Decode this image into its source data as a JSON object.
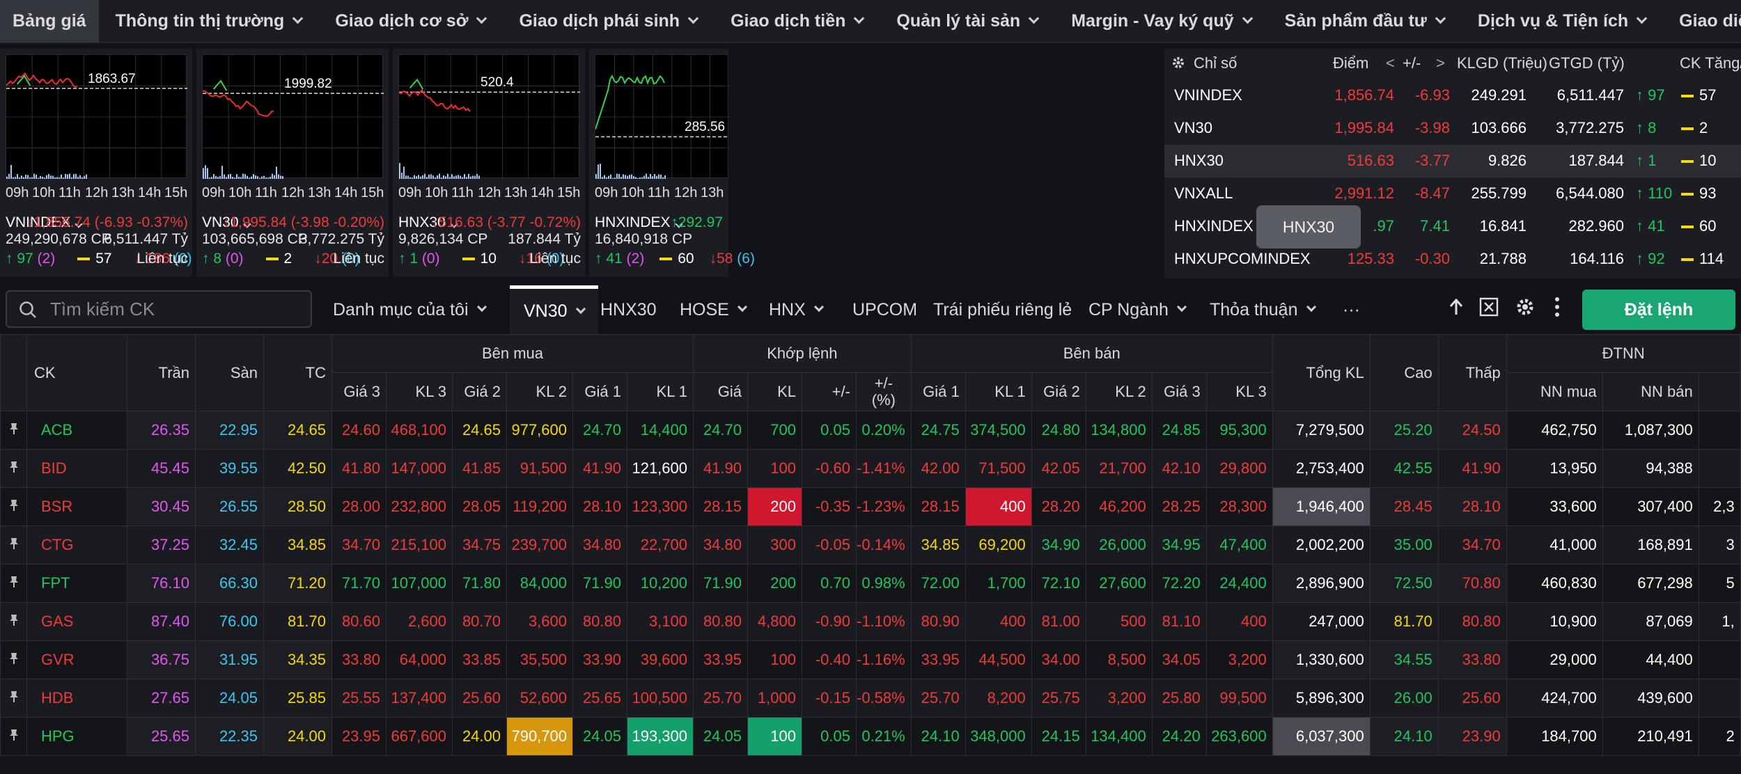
{
  "nav": [
    "Bảng giá",
    "Thông tin thị trường",
    "Giao dịch cơ sở",
    "Giao dịch phái sinh",
    "Giao dịch tiền",
    "Quản lý tài sản",
    "Margin - Vay ký quỹ",
    "Sản phẩm đầu tư",
    "Dịch vụ & Tiện ích",
    "Giao diện của tôi"
  ],
  "cards": [
    {
      "name": "VNINDEX",
      "ref": "1863.67",
      "change": "↓1,856.74 (-6.93 -0.37%)",
      "volume": "249,290,678 CP",
      "value": "6,511.447 Tỷ",
      "up": "↑ 97",
      "ce": "(2)",
      "unch": "57",
      "down": "↓ 186",
      "fl": "(0)",
      "status": "Liên tục",
      "hours": [
        "09h",
        "10h",
        "11h",
        "12h",
        "13h",
        "14h",
        "15h"
      ]
    },
    {
      "name": "VN30",
      "ref": "1999.82",
      "change": "↓1,995.84 (-3.98 -0.20%)",
      "volume": "103,665,698 CP",
      "value": "3,772.275 Tỷ",
      "up": "↑ 8",
      "ce": "(0)",
      "unch": "2",
      "down": "↓20",
      "fl": "(0)",
      "status": "Liên tục",
      "hours": [
        "09h",
        "10h",
        "11h",
        "12h",
        "13h",
        "14h",
        "15h"
      ]
    },
    {
      "name": "HNX30",
      "ref": "520.4",
      "change": "↓516.63 (-3.77 -0.72%)",
      "volume": "9,826,134 CP",
      "value": "187.844 Tỷ",
      "up": "↑ 1",
      "ce": "(0)",
      "unch": "10",
      "down": "↓16",
      "fl": "(0)",
      "status": "Liên tục",
      "hours": [
        "09h",
        "10h",
        "11h",
        "12h",
        "13h",
        "14h",
        "15h"
      ]
    },
    {
      "name": "HNXINDEX",
      "ref": "285.56",
      "change": "↑292.97",
      "volume": "16,840,918 CP",
      "value": "",
      "up": "↑ 41",
      "ce": "(2)",
      "unch": "60",
      "down": "↓58",
      "fl": "(6)",
      "status": "",
      "hours": [
        "09h",
        "10h",
        "11h",
        "12h",
        "13h"
      ]
    }
  ],
  "index_table": {
    "headers": [
      "Chỉ số",
      "Điểm",
      "<",
      "+/-",
      ">",
      "KLGD (Triệu)",
      "GTGD (Tỷ)",
      "CK Tăng/"
    ],
    "rows": [
      {
        "name": "VNINDEX",
        "point": "1,856.74",
        "chg": "-6.93",
        "kl": "249.291",
        "gt": "6,511.447",
        "up": "↑ 97",
        "ref": "57"
      },
      {
        "name": "VN30",
        "point": "1,995.84",
        "chg": "-3.98",
        "kl": "103.666",
        "gt": "3,772.275",
        "up": "↑ 8",
        "ref": "2"
      },
      {
        "name": "HNX30",
        "point": "516.63",
        "chg": "-3.77",
        "kl": "9.826",
        "gt": "187.844",
        "up": "↑ 1",
        "ref": "10"
      },
      {
        "name": "VNXALL",
        "point": "2,991.12",
        "chg": "-8.47",
        "kl": "255.799",
        "gt": "6,544.080",
        "up": "↑ 110",
        "ref": "93"
      },
      {
        "name": "HNXINDEX",
        "point": ".97",
        "chg": "7.41",
        "kl": "16.841",
        "gt": "282.960",
        "up": "↑ 41",
        "ref": "60"
      },
      {
        "name": "HNXUPCOMINDEX",
        "point": "125.33",
        "chg": "-0.30",
        "kl": "21.788",
        "gt": "164.116",
        "up": "↑ 92",
        "ref": "114"
      }
    ],
    "tooltip": "HNX30"
  },
  "toolbar": {
    "search_placeholder": "Tìm kiếm CK",
    "tabs": [
      "Danh mục của tôi",
      "VN30",
      "HNX30",
      "HOSE",
      "HNX",
      "UPCOM",
      "Trái phiếu riêng lẻ",
      "CP Ngành",
      "Thỏa thuận",
      "···"
    ],
    "order": "Đặt lệnh"
  },
  "board": {
    "h1": {
      "ck": "CK",
      "tran": "Trần",
      "san": "Sàn",
      "tc": "TC",
      "buy": "Bên mua",
      "match": "Khớp lệnh",
      "sell": "Bên bán",
      "total": "Tổng KL",
      "high": "Cao",
      "low": "Thấp",
      "foreign": "ĐTNN"
    },
    "h2": [
      "Giá 3",
      "KL 3",
      "Giá 2",
      "KL 2",
      "Giá 1",
      "KL 1",
      "Giá",
      "KL",
      "+/-",
      "+/-\n(%)",
      "Giá 1",
      "KL 1",
      "Giá 2",
      "KL 2",
      "Giá 3",
      "KL 3",
      "NN mua",
      "NN bán"
    ],
    "rows": [
      [
        "ACB",
        "26.35",
        "22.95",
        "24.65",
        "24.60",
        "468,100",
        "24.65",
        "977,600",
        "24.70",
        "14,400",
        "24.70",
        "700",
        "0.05",
        "0.20%",
        "24.75",
        "374,500",
        "24.80",
        "134,800",
        "24.85",
        "95,300",
        "7,279,500",
        "25.20",
        "24.50",
        "462,750",
        "1,087,300",
        ""
      ],
      [
        "BID",
        "45.45",
        "39.55",
        "42.50",
        "41.80",
        "147,000",
        "41.85",
        "91,500",
        "41.90",
        "121,600",
        "41.90",
        "100",
        "-0.60",
        "-1.41%",
        "42.00",
        "71,500",
        "42.05",
        "21,700",
        "42.10",
        "29,800",
        "2,753,400",
        "42.55",
        "41.90",
        "13,950",
        "94,388",
        ""
      ],
      [
        "BSR",
        "30.45",
        "26.55",
        "28.50",
        "28.00",
        "232,800",
        "28.05",
        "119,200",
        "28.10",
        "123,300",
        "28.15",
        "200",
        "-0.35",
        "-1.23%",
        "28.15",
        "400",
        "28.20",
        "46,200",
        "28.25",
        "28,300",
        "1,946,400",
        "28.45",
        "28.10",
        "33,600",
        "307,400",
        "2,3"
      ],
      [
        "CTG",
        "37.25",
        "32.45",
        "34.85",
        "34.70",
        "215,100",
        "34.75",
        "239,700",
        "34.80",
        "22,700",
        "34.80",
        "300",
        "-0.05",
        "-0.14%",
        "34.85",
        "69,200",
        "34.90",
        "26,000",
        "34.95",
        "47,400",
        "2,002,200",
        "35.00",
        "34.70",
        "41,000",
        "168,891",
        "3"
      ],
      [
        "FPT",
        "76.10",
        "66.30",
        "71.20",
        "71.70",
        "107,000",
        "71.80",
        "84,000",
        "71.90",
        "10,200",
        "71.90",
        "200",
        "0.70",
        "0.98%",
        "72.00",
        "1,700",
        "72.10",
        "27,600",
        "72.20",
        "24,400",
        "2,896,900",
        "72.50",
        "70.80",
        "460,830",
        "677,298",
        "5"
      ],
      [
        "GAS",
        "87.40",
        "76.00",
        "81.70",
        "80.60",
        "2,600",
        "80.70",
        "3,600",
        "80.80",
        "3,100",
        "80.80",
        "4,800",
        "-0.90",
        "-1.10%",
        "80.90",
        "400",
        "81.00",
        "500",
        "81.10",
        "400",
        "247,000",
        "81.70",
        "80.80",
        "10,900",
        "87,069",
        "1,"
      ],
      [
        "GVR",
        "36.75",
        "31.95",
        "34.35",
        "33.80",
        "64,000",
        "33.85",
        "35,500",
        "33.90",
        "39,600",
        "33.95",
        "100",
        "-0.40",
        "-1.16%",
        "33.95",
        "44,500",
        "34.00",
        "8,500",
        "34.05",
        "3,200",
        "1,330,600",
        "34.55",
        "33.80",
        "29,000",
        "44,400",
        ""
      ],
      [
        "HDB",
        "27.65",
        "24.05",
        "25.85",
        "25.55",
        "137,400",
        "25.60",
        "52,600",
        "25.65",
        "100,500",
        "25.70",
        "1,000",
        "-0.15",
        "-0.58%",
        "25.70",
        "8,200",
        "25.75",
        "3,200",
        "25.80",
        "99,500",
        "5,896,300",
        "26.00",
        "25.60",
        "424,700",
        "439,600",
        ""
      ],
      [
        "HPG",
        "25.65",
        "22.35",
        "24.00",
        "23.95",
        "667,600",
        "24.00",
        "790,700",
        "24.05",
        "193,300",
        "24.05",
        "100",
        "0.05",
        "0.21%",
        "24.10",
        "348,000",
        "24.15",
        "134,400",
        "24.20",
        "263,600",
        "6,037,300",
        "24.10",
        "23.90",
        "184,700",
        "210,491",
        "2"
      ]
    ]
  }
}
